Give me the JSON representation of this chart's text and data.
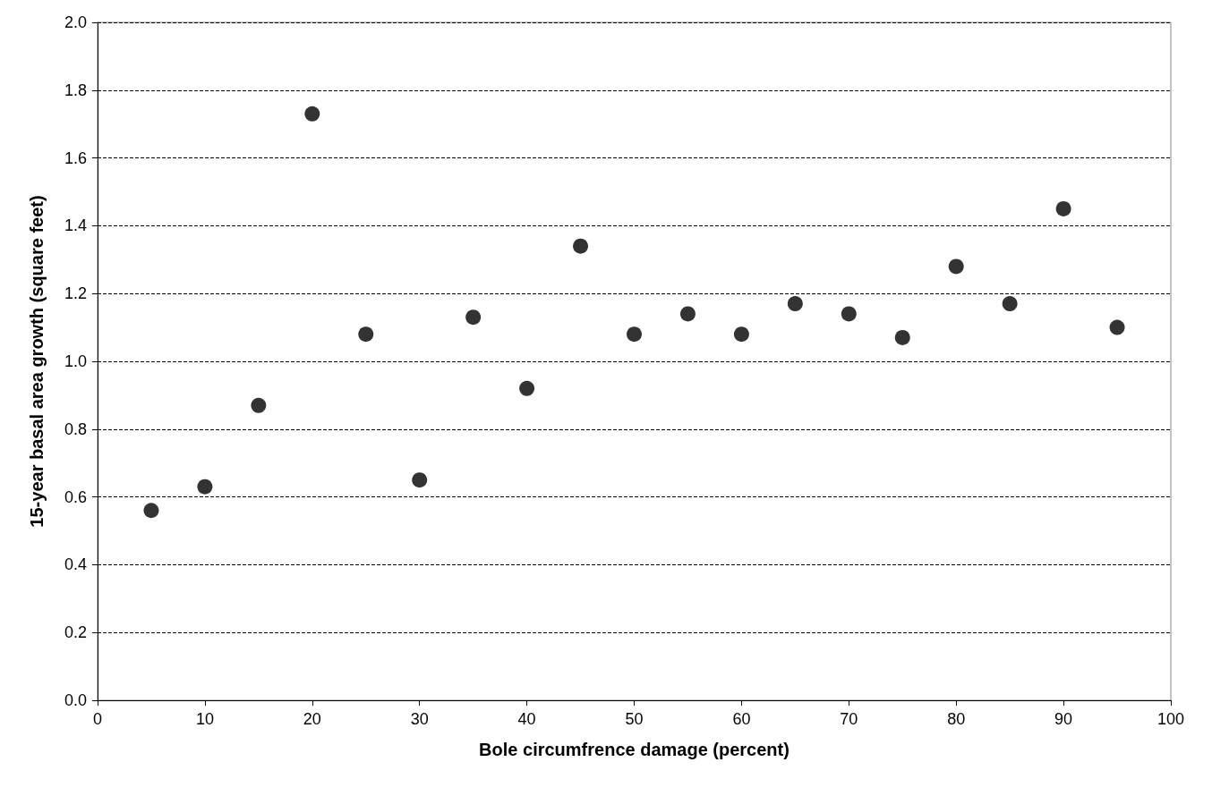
{
  "chart_data": {
    "type": "scatter",
    "xlabel": "Bole circumfrence damage (percent)",
    "ylabel": "15-year basal area growth (square feet)",
    "x": [
      5,
      10,
      15,
      20,
      25,
      30,
      35,
      40,
      45,
      50,
      55,
      60,
      65,
      70,
      75,
      80,
      85,
      90,
      95
    ],
    "values": [
      0.56,
      0.63,
      0.87,
      1.73,
      1.08,
      0.65,
      1.13,
      0.92,
      1.34,
      1.08,
      1.14,
      1.08,
      1.17,
      1.14,
      1.07,
      1.28,
      1.17,
      1.45,
      1.1
    ],
    "color": "#000000",
    "marker": "circle",
    "xlim": [
      0,
      100
    ],
    "xticks": [
      0,
      10,
      20,
      30,
      40,
      50,
      60,
      70,
      80,
      90,
      100
    ],
    "ylim": [
      0,
      2
    ],
    "yticks": [
      {
        "value": 0,
        "label": "0.0"
      },
      {
        "value": 0.2,
        "label": "0.2"
      },
      {
        "value": 0.4,
        "label": "0.4"
      },
      {
        "value": 0.6,
        "label": "0.6"
      },
      {
        "value": 0.8,
        "label": "0.8"
      },
      {
        "value": 1,
        "label": "1.0"
      },
      {
        "value": 1.2,
        "label": "1.2"
      },
      {
        "value": 1.4,
        "label": "1.4"
      },
      {
        "value": 1.6,
        "label": "1.6"
      },
      {
        "value": 1.8,
        "label": "1.8"
      },
      {
        "value": 2,
        "label": "2.0"
      }
    ],
    "grid": "y"
  }
}
